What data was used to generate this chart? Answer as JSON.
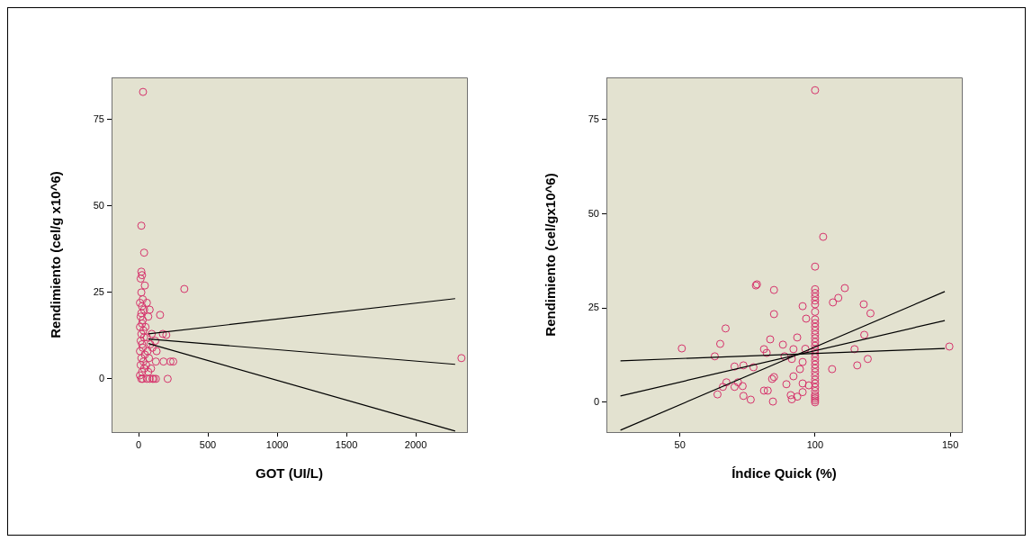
{
  "chart_data": [
    {
      "type": "scatter",
      "xlabel": "GOT (UI/L)",
      "ylabel": "Rendimiento (cel/g x10^6)",
      "xlim": [
        -195,
        2370
      ],
      "ylim": [
        -15.4,
        87.2
      ],
      "xticks": [
        0,
        500,
        1000,
        1500,
        2000
      ],
      "yticks": [
        0,
        25,
        50,
        75
      ],
      "grid": false,
      "legend": false,
      "marker": "circle",
      "series": [
        {
          "color": "#d6336c",
          "x": [
            32,
            20,
            40,
            330,
            155,
            175,
            200,
            230,
            125,
            180,
            250,
            100,
            125,
            210,
            2330,
            20,
            30,
            10,
            25,
            40,
            15,
            35,
            20,
            45,
            10,
            30,
            25,
            15,
            40,
            20,
            35,
            10,
            25,
            30,
            15,
            20,
            40,
            25,
            10,
            30,
            20,
            45,
            15,
            25,
            20,
            60,
            80,
            70,
            90,
            55,
            110,
            75,
            65,
            85,
            60,
            95,
            100,
            50,
            70,
            80,
            60,
            130,
            120
          ],
          "values": [
            83,
            44.3,
            36.5,
            26,
            18.5,
            13,
            12.7,
            5,
            5,
            5,
            5,
            0,
            0,
            0,
            6,
            0,
            0,
            1,
            2,
            3,
            4,
            5,
            6,
            7,
            8,
            9,
            10,
            11,
            12,
            13,
            14,
            15,
            16,
            17,
            18,
            19,
            20,
            21,
            22,
            23,
            25,
            27,
            29,
            30,
            31,
            0,
            0,
            2,
            3,
            4,
            0,
            6,
            8,
            10,
            12,
            13,
            9,
            15,
            18,
            20,
            22,
            8,
            11
          ]
        },
        {
          "type": "line",
          "marker": "none",
          "color": "#000000",
          "x": [
            71,
            2285
          ],
          "values": [
            13,
            23.2
          ]
        },
        {
          "type": "line",
          "marker": "none",
          "color": "#000000",
          "x": [
            71,
            2285
          ],
          "values": [
            11.5,
            4.2
          ]
        },
        {
          "type": "line",
          "marker": "none",
          "color": "#000000",
          "x": [
            71,
            2285
          ],
          "values": [
            10.2,
            -15.1
          ]
        }
      ]
    },
    {
      "type": "scatter",
      "xlabel": "Índice Quick (%)",
      "ylabel": "Rendimiento (cel/gx10^6)",
      "xlim": [
        22.8,
        154.3
      ],
      "ylim": [
        -7.9,
        86.2
      ],
      "xticks": [
        50,
        100,
        150
      ],
      "yticks": [
        0,
        25,
        50,
        75
      ],
      "grid": false,
      "legend": false,
      "marker": "circle",
      "series": [
        {
          "color": "#d6336c",
          "x": [
            100,
            103,
            100,
            78.5,
            84.8,
            111,
            108.6,
            106.6,
            118,
            120.5,
            95.4,
            84.8,
            96.7,
            83.4,
            93.4,
            118.2,
            88.1,
            81.1,
            82.1,
            92,
            96.4,
            114.6,
            149.7,
            88.7,
            91.4,
            119.5,
            115.6,
            95.4,
            73.5,
            77.2,
            94.4,
            106.3,
            84.8,
            84.1,
            92,
            73.2,
            89.4,
            95.4,
            97.7,
            81.1,
            82.5,
            73.5,
            76.2,
            84.4,
            91,
            91.4,
            93.4,
            95.4,
            50.7,
            64.9,
            62.9,
            66.9,
            70.2,
            78.1,
            67.2,
            65.9,
            70.2,
            71.5,
            63.9,
            100,
            100,
            100,
            100,
            100,
            100,
            100,
            100,
            100,
            100,
            100,
            100,
            100,
            100,
            100,
            100,
            100,
            100,
            100,
            100,
            100,
            100,
            100,
            100,
            100,
            100,
            100,
            100,
            100,
            100,
            100
          ],
          "values": [
            82.8,
            43.9,
            36,
            31.3,
            29.8,
            30.3,
            27.7,
            26.5,
            26,
            23.6,
            25.5,
            23.4,
            22.2,
            16.7,
            17.2,
            17.9,
            15.3,
            14.1,
            13.1,
            14.1,
            14.2,
            14.1,
            14.8,
            12.2,
            11.5,
            11.5,
            9.8,
            10.7,
            9.8,
            9.3,
            8.8,
            8.8,
            6.7,
            6.2,
            6.9,
            4.3,
            4.8,
            5,
            4.5,
            3.1,
            3.1,
            1.7,
            0.7,
            0.2,
            1.9,
            0.8,
            1.5,
            2.7,
            14.3,
            15.5,
            12.2,
            19.6,
            9.5,
            31,
            5.3,
            4.1,
            4.1,
            5.3,
            2.1,
            0,
            0.5,
            1,
            1.5,
            2,
            3,
            4,
            5,
            6,
            7,
            8,
            9,
            10,
            11,
            12,
            13,
            14,
            15,
            16,
            17,
            18,
            19,
            20,
            21,
            22,
            24,
            26,
            27,
            28,
            29,
            30
          ]
        },
        {
          "type": "line",
          "marker": "none",
          "color": "#000000",
          "x": [
            28,
            148
          ],
          "values": [
            11,
            14.3
          ]
        },
        {
          "type": "line",
          "marker": "none",
          "color": "#000000",
          "x": [
            28,
            148
          ],
          "values": [
            1.7,
            21.7
          ]
        },
        {
          "type": "line",
          "marker": "none",
          "color": "#000000",
          "x": [
            28,
            148
          ],
          "values": [
            -7.4,
            29.4
          ]
        }
      ]
    }
  ]
}
